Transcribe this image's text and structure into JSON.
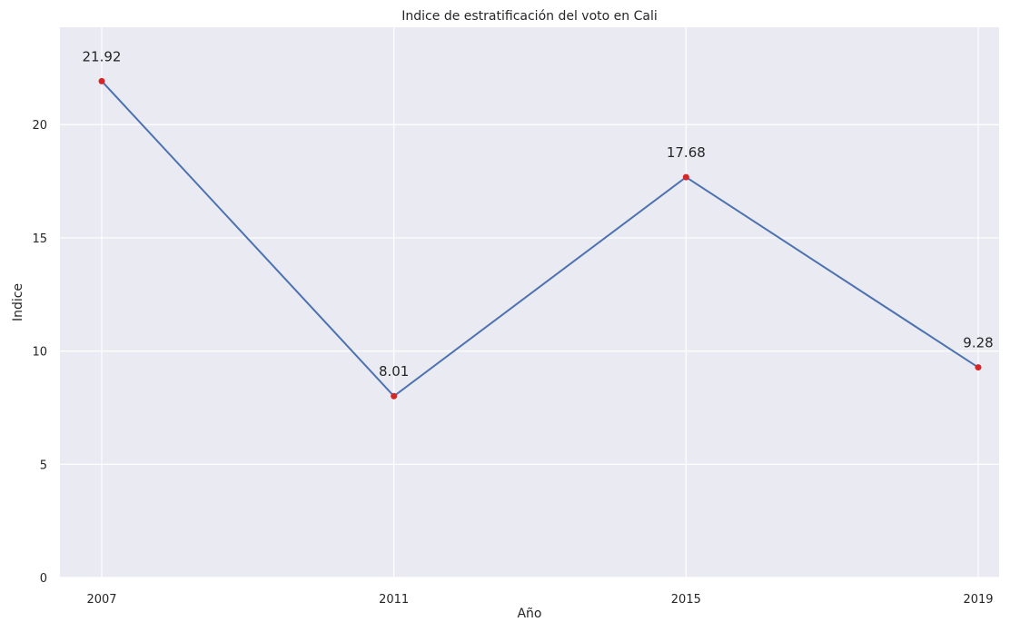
{
  "chart_data": {
    "type": "line",
    "title": "Indice de estratificación del voto en Cali",
    "xlabel": "Año",
    "ylabel": "Indice",
    "categories": [
      "2007",
      "2011",
      "2015",
      "2019"
    ],
    "series": [
      {
        "values": [
          21.92,
          8.01,
          17.68,
          9.28
        ],
        "data_labels": [
          "21.92",
          "8.01",
          "17.68",
          "9.28"
        ],
        "line_color": "#4c72b0",
        "marker_color": "#d62728"
      }
    ],
    "ylim": [
      0,
      24.3
    ],
    "yticks": [
      0,
      5,
      10,
      15,
      20
    ],
    "ytick_labels": [
      "0",
      "5",
      "10",
      "15",
      "20"
    ],
    "grid": true,
    "legend": "none",
    "background_color": "#eaeaf2",
    "grid_color": "#ffffff"
  }
}
